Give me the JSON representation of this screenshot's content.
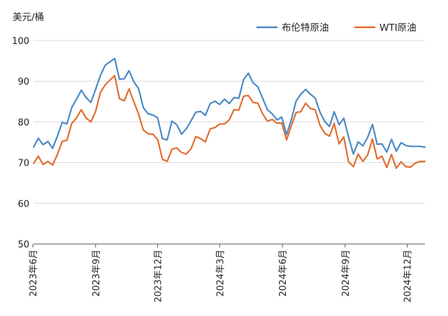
{
  "chart_data": {
    "type": "line",
    "title": "",
    "unit_label": "美元/桶",
    "xlabel": "",
    "ylabel": "",
    "ylim": [
      50,
      100
    ],
    "yticks": [
      50,
      60,
      70,
      80,
      90,
      100
    ],
    "grid": "horizontal",
    "legend_position": "top-right",
    "x_tick_labels": [
      "2023年6月",
      "2023年9月",
      "2023年12月",
      "2024年3月",
      "2024年6月",
      "2024年9月",
      "2024年12月"
    ],
    "x": [
      "2023-06-02",
      "2023-06-09",
      "2023-06-16",
      "2023-06-23",
      "2023-06-30",
      "2023-07-07",
      "2023-07-14",
      "2023-07-21",
      "2023-07-28",
      "2023-08-04",
      "2023-08-11",
      "2023-08-18",
      "2023-08-25",
      "2023-09-01",
      "2023-09-08",
      "2023-09-15",
      "2023-09-22",
      "2023-09-29",
      "2023-10-06",
      "2023-10-13",
      "2023-10-20",
      "2023-10-27",
      "2023-11-03",
      "2023-11-10",
      "2023-11-17",
      "2023-11-24",
      "2023-12-01",
      "2023-12-08",
      "2023-12-15",
      "2023-12-22",
      "2023-12-29",
      "2024-01-05",
      "2024-01-12",
      "2024-01-19",
      "2024-01-26",
      "2024-02-02",
      "2024-02-09",
      "2024-02-16",
      "2024-02-23",
      "2024-03-01",
      "2024-03-08",
      "2024-03-15",
      "2024-03-22",
      "2024-03-29",
      "2024-04-05",
      "2024-04-12",
      "2024-04-19",
      "2024-04-26",
      "2024-05-03",
      "2024-05-10",
      "2024-05-17",
      "2024-05-24",
      "2024-05-31",
      "2024-06-07",
      "2024-06-14",
      "2024-06-21",
      "2024-06-28",
      "2024-07-05",
      "2024-07-12",
      "2024-07-19",
      "2024-07-26",
      "2024-08-02",
      "2024-08-09",
      "2024-08-16",
      "2024-08-23",
      "2024-08-30",
      "2024-09-06",
      "2024-09-13",
      "2024-09-20",
      "2024-09-27",
      "2024-10-04",
      "2024-10-11",
      "2024-10-18",
      "2024-10-25",
      "2024-11-01",
      "2024-11-08",
      "2024-11-15",
      "2024-11-22",
      "2024-11-29",
      "2024-12-06",
      "2024-12-13",
      "2024-12-20",
      "2024-12-27"
    ],
    "series": [
      {
        "name": "布伦特原油",
        "color": "#4a8ac6",
        "values": [
          73.8,
          76.0,
          74.4,
          75.2,
          73.5,
          76.5,
          79.9,
          79.5,
          83.5,
          85.6,
          87.8,
          86.0,
          84.8,
          88.0,
          91.4,
          93.9,
          94.8,
          95.6,
          90.5,
          90.6,
          92.6,
          89.9,
          88.2,
          83.5,
          82.0,
          81.7,
          81.0,
          75.9,
          75.6,
          80.2,
          79.3,
          77.0,
          78.3,
          80.3,
          82.4,
          82.6,
          81.6,
          84.5,
          85.1,
          84.3,
          85.6,
          84.5,
          86.0,
          85.8,
          90.4,
          92.0,
          89.6,
          88.6,
          85.8,
          83.0,
          82.0,
          80.5,
          81.2,
          76.9,
          80.5,
          85.1,
          86.8,
          88.0,
          86.8,
          85.9,
          82.4,
          80.1,
          78.9,
          82.5,
          79.3,
          80.9,
          76.3,
          72.1,
          75.1,
          74.1,
          76.2,
          79.4,
          74.5,
          74.6,
          72.6,
          75.7,
          72.8,
          74.9,
          74.2,
          74.0,
          74.0,
          74.0,
          73.8
        ]
      },
      {
        "name": "WTI原油",
        "color": "#e26d2f",
        "values": [
          69.8,
          71.6,
          69.5,
          70.3,
          69.4,
          72.0,
          75.2,
          75.5,
          79.6,
          81.0,
          83.0,
          81.0,
          80.0,
          82.6,
          87.2,
          89.1,
          90.3,
          91.4,
          85.7,
          85.2,
          88.1,
          85.0,
          82.0,
          78.0,
          77.1,
          77.0,
          75.7,
          70.8,
          70.3,
          73.3,
          73.6,
          72.5,
          72.1,
          73.4,
          76.4,
          75.9,
          75.1,
          78.3,
          78.6,
          79.5,
          79.5,
          80.5,
          83.0,
          82.9,
          86.3,
          86.5,
          84.8,
          84.6,
          82.0,
          80.2,
          80.6,
          79.7,
          79.7,
          75.6,
          79.0,
          82.3,
          82.5,
          84.6,
          83.3,
          83.0,
          79.2,
          77.2,
          76.5,
          79.6,
          74.6,
          76.3,
          70.2,
          69.0,
          72.1,
          70.3,
          71.9,
          75.8,
          70.9,
          71.6,
          68.8,
          72.0,
          68.6,
          70.2,
          69.0,
          68.9,
          69.9,
          70.3,
          70.3
        ]
      }
    ]
  }
}
